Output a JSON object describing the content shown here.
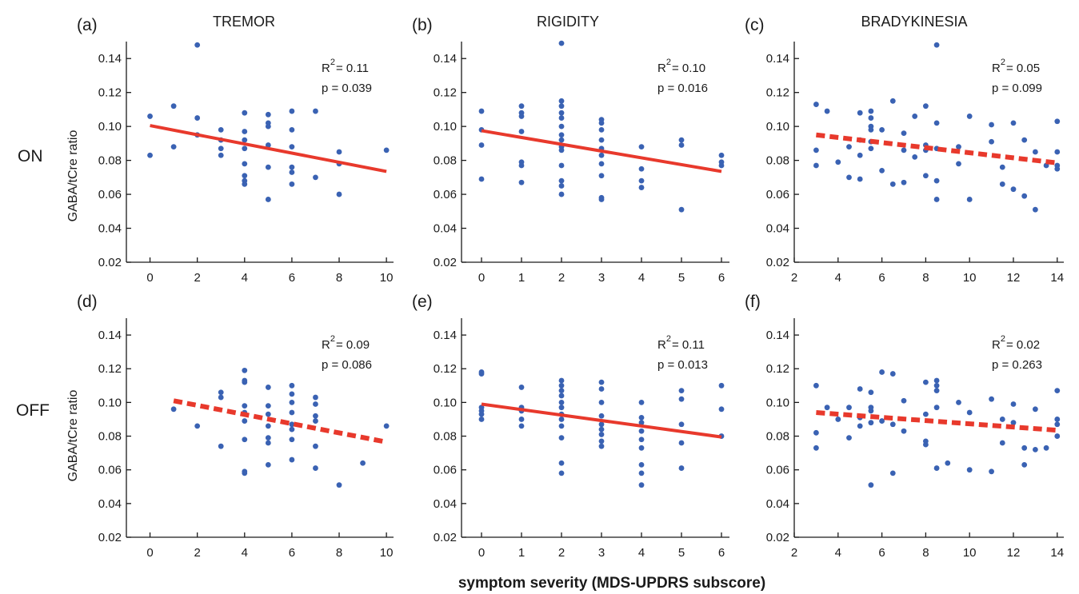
{
  "colors": {
    "points": "#3a62b3",
    "fit": "#e8392c",
    "axis": "#1a1a1a"
  },
  "figure": {
    "column_titles": [
      "TREMOR",
      "RIGIDITY",
      "BRADYKINESIA"
    ],
    "row_labels": [
      "ON",
      "OFF"
    ],
    "ylabel": "GABA/tCre ratio",
    "xlabel": "symptom severity (MDS-UPDRS subscore)"
  },
  "chart_data": [
    {
      "type": "scatter",
      "panel": "(a)",
      "column": "TREMOR",
      "row": "ON",
      "xlim": [
        -1,
        10.3
      ],
      "xticks": [
        0,
        2,
        4,
        6,
        8,
        10
      ],
      "ylim": [
        0.02,
        0.15
      ],
      "yticks": [
        0.02,
        0.04,
        0.06,
        0.08,
        0.1,
        0.12,
        0.14
      ],
      "stats": {
        "r2": "R",
        "r2_value": "= 0.11",
        "p": "p = 0.039"
      },
      "fit": {
        "x": [
          0,
          10
        ],
        "y": [
          0.1005,
          0.0735
        ],
        "style": "solid"
      },
      "points": [
        [
          0,
          0.106
        ],
        [
          0,
          0.083
        ],
        [
          1,
          0.112
        ],
        [
          1,
          0.088
        ],
        [
          2,
          0.148
        ],
        [
          2,
          0.105
        ],
        [
          2,
          0.095
        ],
        [
          3,
          0.098
        ],
        [
          3,
          0.092
        ],
        [
          3,
          0.087
        ],
        [
          3,
          0.083
        ],
        [
          4,
          0.108
        ],
        [
          4,
          0.097
        ],
        [
          4,
          0.092
        ],
        [
          4,
          0.087
        ],
        [
          4,
          0.078
        ],
        [
          4,
          0.071
        ],
        [
          4,
          0.068
        ],
        [
          4,
          0.066
        ],
        [
          5,
          0.107
        ],
        [
          5,
          0.102
        ],
        [
          5,
          0.1
        ],
        [
          5,
          0.089
        ],
        [
          5,
          0.076
        ],
        [
          5,
          0.057
        ],
        [
          6,
          0.109
        ],
        [
          6,
          0.098
        ],
        [
          6,
          0.088
        ],
        [
          6,
          0.076
        ],
        [
          6,
          0.073
        ],
        [
          6,
          0.066
        ],
        [
          7,
          0.109
        ],
        [
          7,
          0.07
        ],
        [
          8,
          0.085
        ],
        [
          8,
          0.078
        ],
        [
          8,
          0.06
        ],
        [
          10,
          0.086
        ]
      ]
    },
    {
      "type": "scatter",
      "panel": "(b)",
      "column": "RIGIDITY",
      "row": "ON",
      "xlim": [
        -0.5,
        6.2
      ],
      "xticks": [
        0,
        1,
        2,
        3,
        4,
        5,
        6
      ],
      "ylim": [
        0.02,
        0.15
      ],
      "yticks": [
        0.02,
        0.04,
        0.06,
        0.08,
        0.1,
        0.12,
        0.14
      ],
      "stats": {
        "r2": "R",
        "r2_value": "= 0.10",
        "p": "p = 0.016"
      },
      "fit": {
        "x": [
          0,
          6
        ],
        "y": [
          0.0975,
          0.0735
        ],
        "style": "solid"
      },
      "points": [
        [
          0,
          0.109
        ],
        [
          0,
          0.098
        ],
        [
          0,
          0.089
        ],
        [
          0,
          0.069
        ],
        [
          1,
          0.112
        ],
        [
          1,
          0.108
        ],
        [
          1,
          0.106
        ],
        [
          1,
          0.097
        ],
        [
          1,
          0.079
        ],
        [
          1,
          0.077
        ],
        [
          1,
          0.067
        ],
        [
          2,
          0.149
        ],
        [
          2,
          0.115
        ],
        [
          2,
          0.112
        ],
        [
          2,
          0.108
        ],
        [
          2,
          0.105
        ],
        [
          2,
          0.1
        ],
        [
          2,
          0.095
        ],
        [
          2,
          0.092
        ],
        [
          2,
          0.088
        ],
        [
          2,
          0.086
        ],
        [
          2,
          0.077
        ],
        [
          2,
          0.068
        ],
        [
          2,
          0.065
        ],
        [
          2,
          0.06
        ],
        [
          3,
          0.104
        ],
        [
          3,
          0.102
        ],
        [
          3,
          0.098
        ],
        [
          3,
          0.092
        ],
        [
          3,
          0.087
        ],
        [
          3,
          0.083
        ],
        [
          3,
          0.078
        ],
        [
          3,
          0.071
        ],
        [
          3,
          0.058
        ],
        [
          3,
          0.057
        ],
        [
          4,
          0.088
        ],
        [
          4,
          0.075
        ],
        [
          4,
          0.068
        ],
        [
          4,
          0.064
        ],
        [
          5,
          0.092
        ],
        [
          5,
          0.089
        ],
        [
          5,
          0.051
        ],
        [
          6,
          0.083
        ],
        [
          6,
          0.079
        ],
        [
          6,
          0.077
        ]
      ]
    },
    {
      "type": "scatter",
      "panel": "(c)",
      "column": "BRADYKINESIA",
      "row": "ON",
      "xlim": [
        2,
        14.3
      ],
      "xticks": [
        2,
        4,
        6,
        8,
        10,
        12,
        14
      ],
      "ylim": [
        0.02,
        0.15
      ],
      "yticks": [
        0.02,
        0.04,
        0.06,
        0.08,
        0.1,
        0.12,
        0.14
      ],
      "stats": {
        "r2": "R",
        "r2_value": "= 0.05",
        "p": "p = 0.099"
      },
      "fit": {
        "x": [
          3,
          14
        ],
        "y": [
          0.095,
          0.0785
        ],
        "style": "dashed"
      },
      "points": [
        [
          3,
          0.113
        ],
        [
          3,
          0.086
        ],
        [
          3,
          0.077
        ],
        [
          3.5,
          0.109
        ],
        [
          4,
          0.079
        ],
        [
          4.5,
          0.088
        ],
        [
          4.5,
          0.07
        ],
        [
          5,
          0.108
        ],
        [
          5,
          0.092
        ],
        [
          5,
          0.083
        ],
        [
          5,
          0.069
        ],
        [
          5.5,
          0.109
        ],
        [
          5.5,
          0.105
        ],
        [
          5.5,
          0.1
        ],
        [
          5.5,
          0.098
        ],
        [
          5.5,
          0.091
        ],
        [
          5.5,
          0.087
        ],
        [
          6,
          0.098
        ],
        [
          6,
          0.074
        ],
        [
          6.5,
          0.115
        ],
        [
          6.5,
          0.066
        ],
        [
          7,
          0.096
        ],
        [
          7,
          0.086
        ],
        [
          7,
          0.067
        ],
        [
          7.5,
          0.106
        ],
        [
          7.5,
          0.082
        ],
        [
          8,
          0.112
        ],
        [
          8,
          0.089
        ],
        [
          8,
          0.086
        ],
        [
          8,
          0.071
        ],
        [
          8.5,
          0.148
        ],
        [
          8.5,
          0.102
        ],
        [
          8.5,
          0.087
        ],
        [
          8.5,
          0.068
        ],
        [
          8.5,
          0.057
        ],
        [
          9.5,
          0.088
        ],
        [
          9.5,
          0.078
        ],
        [
          10,
          0.106
        ],
        [
          10,
          0.057
        ],
        [
          11,
          0.101
        ],
        [
          11,
          0.091
        ],
        [
          11.5,
          0.076
        ],
        [
          11.5,
          0.066
        ],
        [
          12,
          0.102
        ],
        [
          12,
          0.063
        ],
        [
          12.5,
          0.092
        ],
        [
          12.5,
          0.059
        ],
        [
          13,
          0.085
        ],
        [
          13,
          0.051
        ],
        [
          13.5,
          0.077
        ],
        [
          14,
          0.103
        ],
        [
          14,
          0.085
        ],
        [
          14,
          0.077
        ],
        [
          14,
          0.075
        ]
      ]
    },
    {
      "type": "scatter",
      "panel": "(d)",
      "column": "TREMOR",
      "row": "OFF",
      "xlim": [
        -1,
        10.3
      ],
      "xticks": [
        0,
        2,
        4,
        6,
        8,
        10
      ],
      "ylim": [
        0.02,
        0.15
      ],
      "yticks": [
        0.02,
        0.04,
        0.06,
        0.08,
        0.1,
        0.12,
        0.14
      ],
      "stats": {
        "r2": "R",
        "r2_value": "= 0.09",
        "p": "p = 0.086"
      },
      "fit": {
        "x": [
          1,
          10
        ],
        "y": [
          0.101,
          0.0765
        ],
        "style": "dashed"
      },
      "points": [
        [
          1,
          0.096
        ],
        [
          2,
          0.086
        ],
        [
          3,
          0.106
        ],
        [
          3,
          0.103
        ],
        [
          3,
          0.074
        ],
        [
          4,
          0.119
        ],
        [
          4,
          0.113
        ],
        [
          4,
          0.112
        ],
        [
          4,
          0.098
        ],
        [
          4,
          0.094
        ],
        [
          4,
          0.089
        ],
        [
          4,
          0.078
        ],
        [
          4,
          0.059
        ],
        [
          4,
          0.058
        ],
        [
          5,
          0.109
        ],
        [
          5,
          0.098
        ],
        [
          5,
          0.093
        ],
        [
          5,
          0.086
        ],
        [
          5,
          0.079
        ],
        [
          5,
          0.076
        ],
        [
          5,
          0.063
        ],
        [
          6,
          0.11
        ],
        [
          6,
          0.105
        ],
        [
          6,
          0.1
        ],
        [
          6,
          0.094
        ],
        [
          6,
          0.087
        ],
        [
          6,
          0.084
        ],
        [
          6,
          0.078
        ],
        [
          6,
          0.066
        ],
        [
          7,
          0.103
        ],
        [
          7,
          0.099
        ],
        [
          7,
          0.092
        ],
        [
          7,
          0.089
        ],
        [
          7,
          0.074
        ],
        [
          7,
          0.061
        ],
        [
          8,
          0.051
        ],
        [
          9,
          0.064
        ],
        [
          10,
          0.086
        ]
      ]
    },
    {
      "type": "scatter",
      "panel": "(e)",
      "column": "RIGIDITY",
      "row": "OFF",
      "xlim": [
        -0.5,
        6.2
      ],
      "xticks": [
        0,
        1,
        2,
        3,
        4,
        5,
        6
      ],
      "ylim": [
        0.02,
        0.15
      ],
      "yticks": [
        0.02,
        0.04,
        0.06,
        0.08,
        0.1,
        0.12,
        0.14
      ],
      "stats": {
        "r2": "R",
        "r2_value": "= 0.11",
        "p": "p = 0.013"
      },
      "fit": {
        "x": [
          0,
          6
        ],
        "y": [
          0.099,
          0.0795
        ],
        "style": "solid"
      },
      "points": [
        [
          0,
          0.118
        ],
        [
          0,
          0.117
        ],
        [
          0,
          0.097
        ],
        [
          0,
          0.095
        ],
        [
          0,
          0.093
        ],
        [
          0,
          0.09
        ],
        [
          1,
          0.109
        ],
        [
          1,
          0.097
        ],
        [
          1,
          0.095
        ],
        [
          1,
          0.09
        ],
        [
          1,
          0.086
        ],
        [
          2,
          0.113
        ],
        [
          2,
          0.11
        ],
        [
          2,
          0.107
        ],
        [
          2,
          0.104
        ],
        [
          2,
          0.1
        ],
        [
          2,
          0.097
        ],
        [
          2,
          0.093
        ],
        [
          2,
          0.09
        ],
        [
          2,
          0.086
        ],
        [
          2,
          0.079
        ],
        [
          2,
          0.064
        ],
        [
          2,
          0.058
        ],
        [
          3,
          0.112
        ],
        [
          3,
          0.108
        ],
        [
          3,
          0.1
        ],
        [
          3,
          0.092
        ],
        [
          3,
          0.087
        ],
        [
          3,
          0.084
        ],
        [
          3,
          0.081
        ],
        [
          3,
          0.077
        ],
        [
          3,
          0.074
        ],
        [
          4,
          0.1
        ],
        [
          4,
          0.091
        ],
        [
          4,
          0.088
        ],
        [
          4,
          0.083
        ],
        [
          4,
          0.078
        ],
        [
          4,
          0.073
        ],
        [
          4,
          0.063
        ],
        [
          4,
          0.058
        ],
        [
          4,
          0.051
        ],
        [
          5,
          0.107
        ],
        [
          5,
          0.102
        ],
        [
          5,
          0.087
        ],
        [
          5,
          0.076
        ],
        [
          5,
          0.061
        ],
        [
          6,
          0.11
        ],
        [
          6,
          0.096
        ],
        [
          6,
          0.08
        ]
      ]
    },
    {
      "type": "scatter",
      "panel": "(f)",
      "column": "BRADYKINESIA",
      "row": "OFF",
      "xlim": [
        2,
        14.3
      ],
      "xticks": [
        2,
        4,
        6,
        8,
        10,
        12,
        14
      ],
      "ylim": [
        0.02,
        0.15
      ],
      "yticks": [
        0.02,
        0.04,
        0.06,
        0.08,
        0.1,
        0.12,
        0.14
      ],
      "stats": {
        "r2": "R",
        "r2_value": "= 0.02",
        "p": "p = 0.263"
      },
      "fit": {
        "x": [
          3,
          14
        ],
        "y": [
          0.094,
          0.0835
        ],
        "style": "dashed"
      },
      "points": [
        [
          3,
          0.11
        ],
        [
          3,
          0.082
        ],
        [
          3,
          0.073
        ],
        [
          3.5,
          0.097
        ],
        [
          4,
          0.09
        ],
        [
          4.5,
          0.097
        ],
        [
          4.5,
          0.079
        ],
        [
          5,
          0.108
        ],
        [
          5,
          0.091
        ],
        [
          5,
          0.086
        ],
        [
          5.5,
          0.106
        ],
        [
          5.5,
          0.097
        ],
        [
          5.5,
          0.095
        ],
        [
          5.5,
          0.088
        ],
        [
          5.5,
          0.051
        ],
        [
          6,
          0.118
        ],
        [
          6,
          0.089
        ],
        [
          6.5,
          0.117
        ],
        [
          6.5,
          0.087
        ],
        [
          6.5,
          0.058
        ],
        [
          7,
          0.101
        ],
        [
          7,
          0.083
        ],
        [
          8,
          0.112
        ],
        [
          8,
          0.093
        ],
        [
          8,
          0.077
        ],
        [
          8,
          0.075
        ],
        [
          8.5,
          0.113
        ],
        [
          8.5,
          0.11
        ],
        [
          8.5,
          0.107
        ],
        [
          8.5,
          0.097
        ],
        [
          8.5,
          0.061
        ],
        [
          9,
          0.064
        ],
        [
          9.5,
          0.1
        ],
        [
          10,
          0.094
        ],
        [
          10,
          0.06
        ],
        [
          11,
          0.059
        ],
        [
          11,
          0.102
        ],
        [
          11.5,
          0.09
        ],
        [
          11.5,
          0.076
        ],
        [
          12,
          0.099
        ],
        [
          12,
          0.088
        ],
        [
          12.5,
          0.073
        ],
        [
          12.5,
          0.063
        ],
        [
          13,
          0.096
        ],
        [
          13,
          0.072
        ],
        [
          13.5,
          0.073
        ],
        [
          14,
          0.107
        ],
        [
          14,
          0.09
        ],
        [
          14,
          0.087
        ],
        [
          14,
          0.08
        ]
      ]
    }
  ]
}
